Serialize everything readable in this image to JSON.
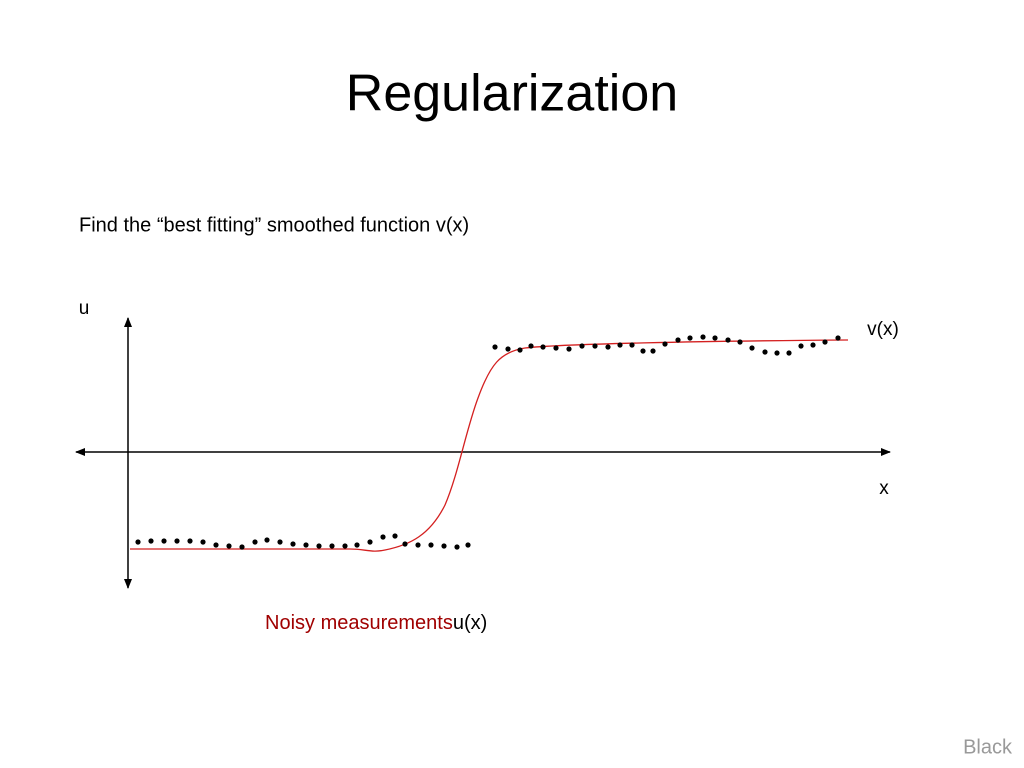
{
  "header": {
    "title": "Regularization"
  },
  "body": {
    "text": "Find the “best fitting” smoothed function v(x)"
  },
  "diagram": {
    "u_label": "u",
    "v_label": "v(x)",
    "x_label": "x",
    "noisy_label": "Noisy measurements",
    "ux_label": "u(x)"
  },
  "footer": {
    "text": "Black"
  }
}
